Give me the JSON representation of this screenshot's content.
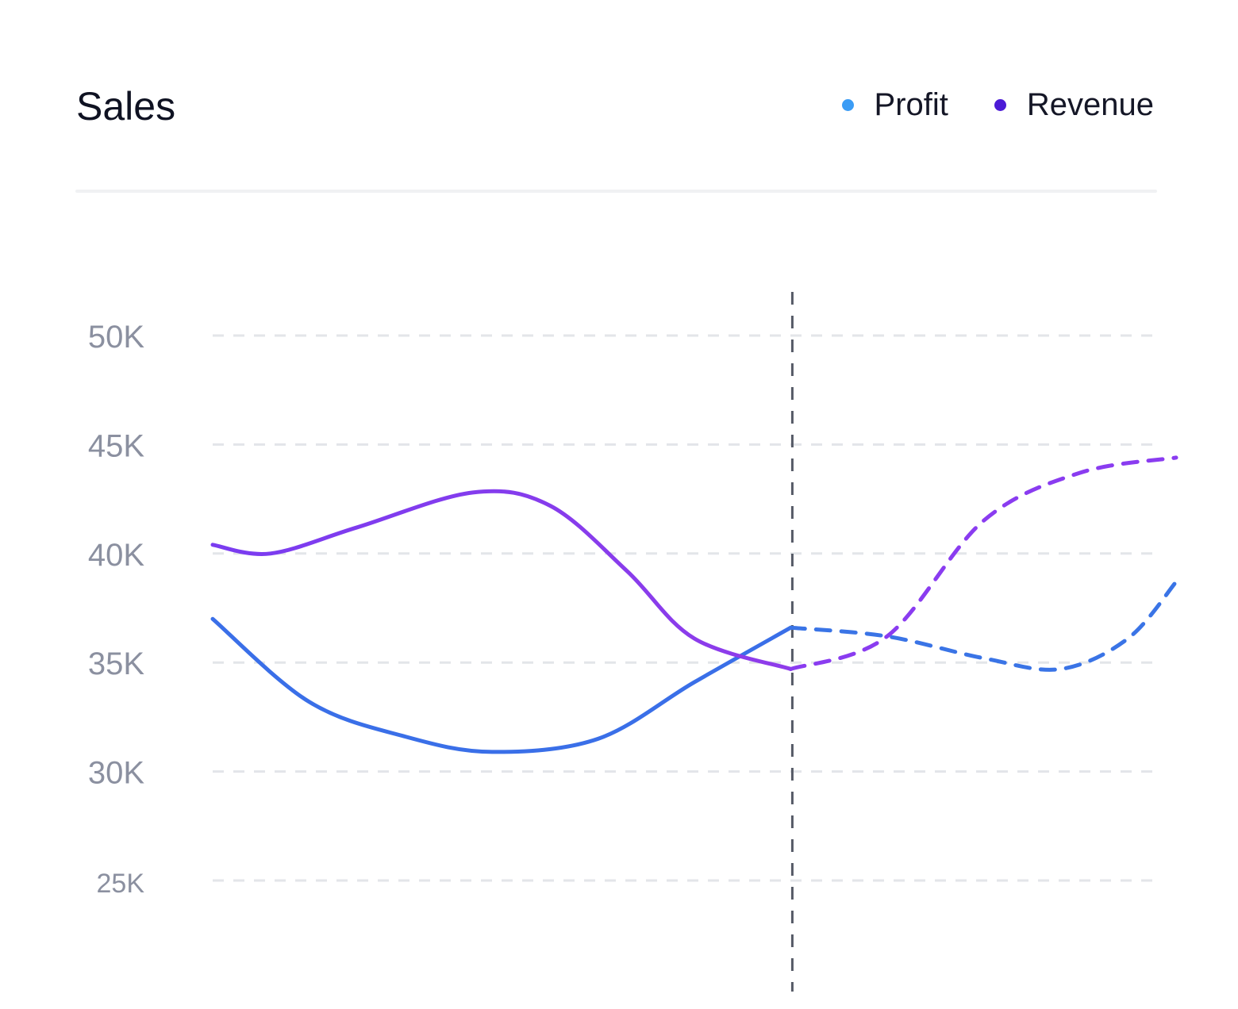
{
  "header": {
    "title": "Sales"
  },
  "legend": [
    {
      "label": "Profit",
      "color": "#3b9cf5"
    },
    {
      "label": "Revenue",
      "color": "#4c1bd6"
    }
  ],
  "chart_data": {
    "type": "line",
    "title": "Sales",
    "xlabel": "",
    "ylabel": "",
    "y_ticks": [
      {
        "value": 50000,
        "label": "50K"
      },
      {
        "value": 45000,
        "label": "45K"
      },
      {
        "value": 40000,
        "label": "40K"
      },
      {
        "value": 35000,
        "label": "35K"
      },
      {
        "value": 30000,
        "label": "30K"
      },
      {
        "value": 25000,
        "label": "25K"
      }
    ],
    "ylim": [
      25000,
      50000
    ],
    "grid": true,
    "legend_position": "top-right",
    "marker_x": 0.6,
    "series": [
      {
        "name": "Profit",
        "color": "#3a6fe8",
        "x": [
          0.0,
          0.1,
          0.2,
          0.29,
          0.4,
          0.5,
          0.6,
          0.7,
          0.8,
          0.88,
          0.95,
          1.0
        ],
        "values": [
          37000,
          33200,
          31600,
          30900,
          31500,
          34100,
          36600,
          36200,
          35200,
          34700,
          36100,
          38700
        ]
      },
      {
        "name": "Revenue",
        "color": "#8a3cf0",
        "x": [
          0.0,
          0.06,
          0.15,
          0.27,
          0.35,
          0.43,
          0.5,
          0.6,
          0.7,
          0.8,
          0.9,
          1.0
        ],
        "values": [
          40400,
          40000,
          41200,
          42800,
          42200,
          39200,
          36100,
          34700,
          36200,
          41500,
          43700,
          44400
        ]
      }
    ]
  }
}
